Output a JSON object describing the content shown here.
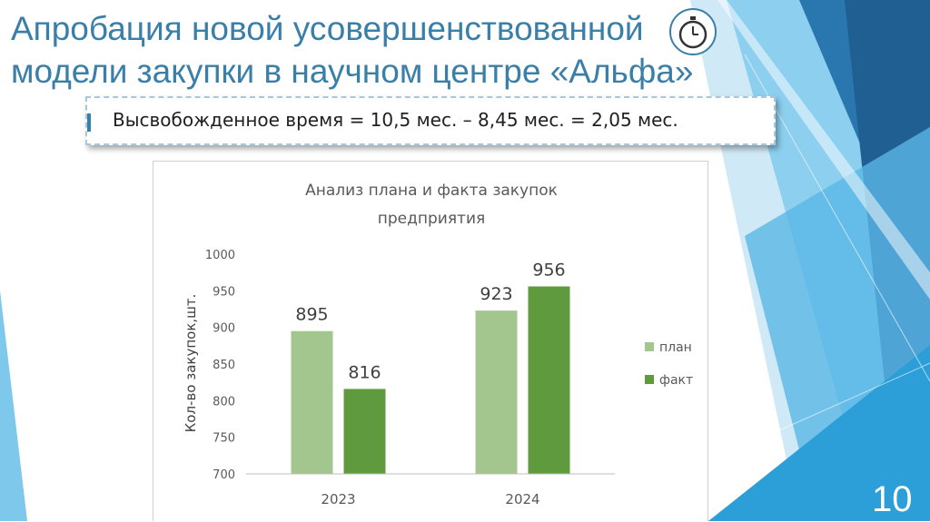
{
  "slide": {
    "title": "Апробация новой усовершенствованной модели закупки в научном центре «Альфа»",
    "formula": "Высвобожденное время = 10,5 мес. – 8,45 мес. = 2,05 мес.",
    "page_number": "10",
    "icons": [
      "stopwatch-icon"
    ],
    "colors": {
      "title": "#3a7fa8",
      "accent_dark": "#1d5e8c",
      "accent_light": "#54b9e8"
    }
  },
  "chart_data": {
    "type": "bar",
    "title": "Анализ плана и факта закупок предприятия",
    "title_lines": [
      "Анализ плана и факта закупок",
      "предприятия"
    ],
    "xlabel": "",
    "ylabel": "Кол-во закупок,шт.",
    "categories": [
      "2023",
      "2024"
    ],
    "series": [
      {
        "name": "план",
        "values": [
          895,
          923
        ],
        "color": "#a3c68e"
      },
      {
        "name": "факт",
        "values": [
          816,
          956
        ],
        "color": "#5f9a3e"
      }
    ],
    "ylim": [
      700,
      1000
    ],
    "yticks": [
      700,
      750,
      800,
      850,
      900,
      950,
      1000
    ],
    "grid": false,
    "data_labels": true,
    "legend_position": "right"
  }
}
